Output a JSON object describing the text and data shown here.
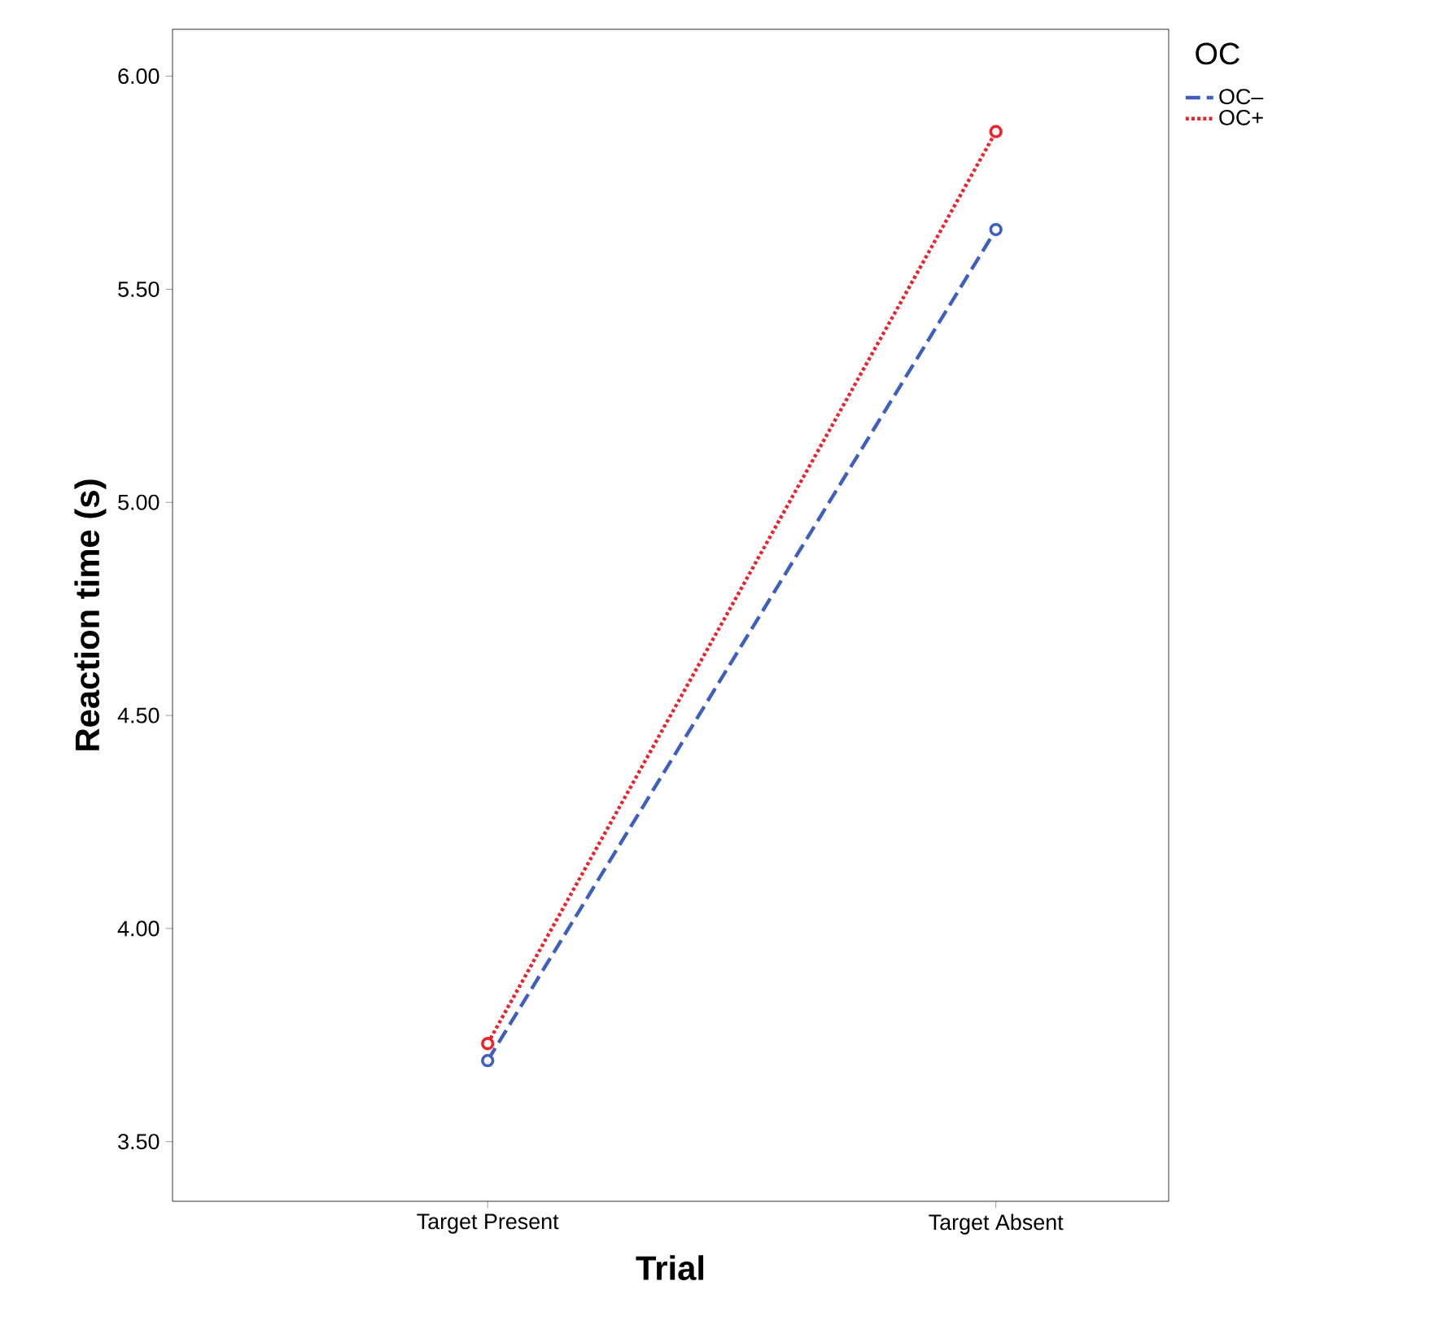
{
  "chart_data": {
    "type": "line",
    "xlabel": "Trial",
    "ylabel": "Reaction time (s)",
    "legend_title": "OC",
    "categories": [
      "Target Present",
      "Target Absent"
    ],
    "series": [
      {
        "name": "OC–",
        "color": "#3f5fbf",
        "values": [
          3.69,
          5.64
        ],
        "line_style": "dashed"
      },
      {
        "name": "OC+",
        "color": "#e8242c",
        "values": [
          3.73,
          5.87
        ],
        "line_style": "dotted"
      }
    ],
    "ylim": [
      3.36,
      6.11
    ],
    "yticks": [
      {
        "value": 3.5,
        "label": "3.50"
      },
      {
        "value": 4.0,
        "label": "4.00"
      },
      {
        "value": 4.5,
        "label": "4.50"
      },
      {
        "value": 5.0,
        "label": "5.00"
      },
      {
        "value": 5.5,
        "label": "5.50"
      },
      {
        "value": 6.0,
        "label": "6.00"
      }
    ],
    "grid": false,
    "legend": "top right",
    "marker": "circle"
  }
}
